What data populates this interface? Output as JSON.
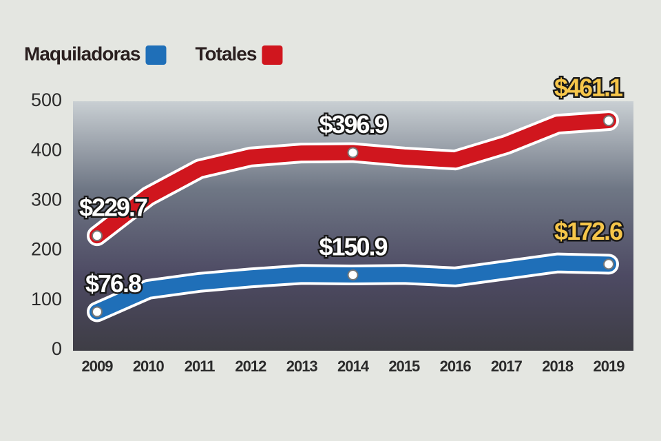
{
  "chart_data": {
    "type": "line",
    "categories": [
      "2009",
      "2010",
      "2011",
      "2012",
      "2013",
      "2014",
      "2015",
      "2016",
      "2017",
      "2018",
      "2019"
    ],
    "series": [
      {
        "name": "Maquiladoras",
        "color": "#1f6fb8",
        "values": [
          76.8,
          122,
          136,
          145,
          152,
          150.9,
          152,
          147,
          161,
          175,
          172.6
        ],
        "value_labels": [
          "$76.8",
          null,
          null,
          null,
          null,
          "$150.9",
          null,
          null,
          null,
          null,
          "$172.6"
        ]
      },
      {
        "name": "Totales",
        "color": "#d0161e",
        "values": [
          229.7,
          309,
          364,
          388,
          396,
          396.9,
          388,
          382,
          413,
          454,
          461.1
        ],
        "value_labels": [
          "$229.7",
          null,
          null,
          null,
          null,
          "$396.9",
          null,
          null,
          null,
          null,
          "$461.1"
        ]
      }
    ],
    "ylim": [
      0,
      500
    ],
    "yticks": [
      0,
      100,
      200,
      300,
      400,
      500
    ]
  }
}
